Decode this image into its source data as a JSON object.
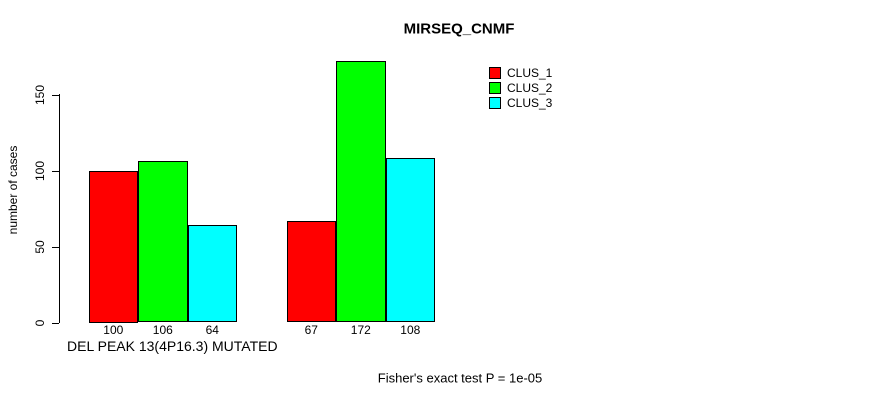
{
  "chart_data": {
    "type": "bar",
    "title": "MIRSEQ_CNMF",
    "ylabel": "number of cases",
    "xlabel": "DEL PEAK 13(4P16.3) MUTATED",
    "footnote": "Fisher's exact test P = 1e-05",
    "groups_count": 2,
    "series": [
      {
        "name": "CLUS_1",
        "color": "#ff0000",
        "values": [
          100,
          67
        ]
      },
      {
        "name": "CLUS_2",
        "color": "#00ff00",
        "values": [
          106,
          172
        ]
      },
      {
        "name": "CLUS_3",
        "color": "#00ffff",
        "values": [
          64,
          108
        ]
      }
    ],
    "bar_value_labels": [
      [
        "100",
        "106",
        "64"
      ],
      [
        "67",
        "172",
        "108"
      ]
    ],
    "yticks": [
      0,
      50,
      100,
      150
    ],
    "ylim": [
      0,
      180
    ],
    "grid": false,
    "legend_position": "top-right",
    "colors": {
      "background": "#ffffff",
      "axis": "#000000",
      "text": "#000000"
    }
  }
}
